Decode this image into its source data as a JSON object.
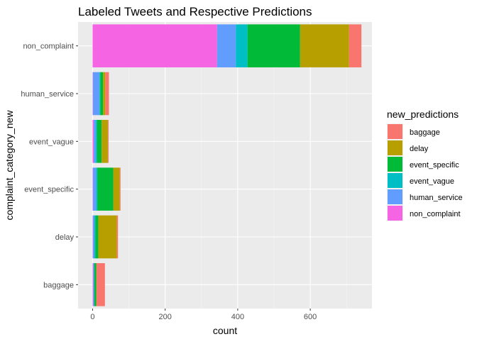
{
  "chart_data": {
    "type": "bar",
    "orientation": "horizontal",
    "stacked": true,
    "title": "Labeled Tweets and Respective Predictions",
    "xlabel": "count",
    "ylabel": "complaint_category_new",
    "xlim": [
      -40,
      770
    ],
    "xticks": [
      0,
      200,
      400,
      600
    ],
    "grid": true,
    "legend_title": "new_predictions",
    "legend_position": "right",
    "categories": [
      "non_complaint",
      "human_service",
      "event_vague",
      "event_specific",
      "delay",
      "baggage"
    ],
    "series": [
      {
        "name": "baggage",
        "color": "#F8766D",
        "values": [
          34,
          10,
          2,
          2,
          3,
          23
        ]
      },
      {
        "name": "delay",
        "color": "#B79F00",
        "values": [
          135,
          6,
          17,
          18,
          51,
          1
        ]
      },
      {
        "name": "event_specific",
        "color": "#00BA38",
        "values": [
          145,
          8,
          13,
          44,
          8,
          5
        ]
      },
      {
        "name": "event_vague",
        "color": "#00BFC4",
        "values": [
          32,
          2,
          3,
          3,
          3,
          1
        ]
      },
      {
        "name": "human_service",
        "color": "#619CFF",
        "values": [
          52,
          18,
          6,
          9,
          4,
          2
        ]
      },
      {
        "name": "non_complaint",
        "color": "#F564E3",
        "values": [
          343,
          1,
          3,
          1,
          1,
          2
        ]
      }
    ]
  }
}
